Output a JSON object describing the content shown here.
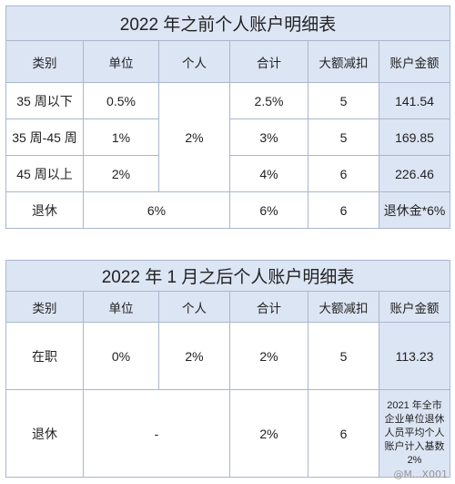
{
  "table1": {
    "title": "2022 年之前个人账户明细表",
    "headers": [
      "类别",
      "单位",
      "个人",
      "合计",
      "大额减扣",
      "账户金额"
    ],
    "personal_merged": "2%",
    "rows": [
      {
        "category": "35 周以下",
        "unit": "0.5%",
        "total": "2.5%",
        "deduct": "5",
        "amount": "141.54"
      },
      {
        "category": "35 周-45 周",
        "unit": "1%",
        "total": "3%",
        "deduct": "5",
        "amount": "169.85"
      },
      {
        "category": "45 周以上",
        "unit": "2%",
        "total": "4%",
        "deduct": "6",
        "amount": "226.46"
      }
    ],
    "retire": {
      "category": "退休",
      "unit_personal": "6%",
      "total": "6%",
      "deduct": "6",
      "amount": "退休金*6%"
    }
  },
  "table2": {
    "title": "2022 年 1 月之后个人账户明细表",
    "headers": [
      "类别",
      "单位",
      "个人",
      "合计",
      "大额减扣",
      "账户金额"
    ],
    "employed": {
      "category": "在职",
      "unit": "0%",
      "personal": "2%",
      "total": "2%",
      "deduct": "5",
      "amount": "113.23"
    },
    "retire": {
      "category": "退休",
      "unit_personal": "-",
      "total": "2%",
      "deduct": "6",
      "amount": "2021 年全市企业单位退休人员平均个人账户计入基数 2%"
    }
  },
  "watermark": "@M...X001"
}
